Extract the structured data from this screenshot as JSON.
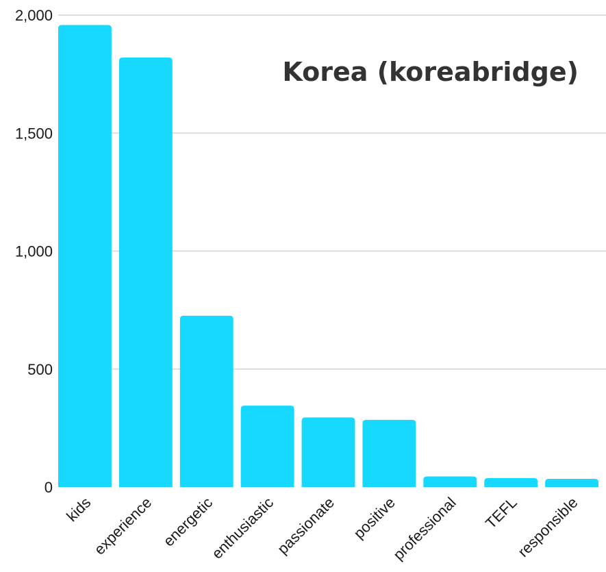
{
  "chart_data": {
    "type": "bar",
    "title": "Korea (koreabridge)",
    "xlabel": "",
    "ylabel": "",
    "ylim": [
      0,
      2000
    ],
    "yticks": [
      0,
      500,
      1000,
      1500,
      2000
    ],
    "ytick_labels": [
      "0",
      "500",
      "1,000",
      "1,500",
      "2,000"
    ],
    "categories": [
      "kids",
      "experience",
      "energetic",
      "enthusiastic",
      "passionate",
      "positive",
      "professional",
      "TEFL",
      "responsible"
    ],
    "values": [
      1958,
      1820,
      726,
      345,
      295,
      285,
      45,
      38,
      35
    ],
    "grid": true,
    "legend": "none",
    "bar_color": "#17d9ff",
    "grid_color": "#dddddd"
  }
}
